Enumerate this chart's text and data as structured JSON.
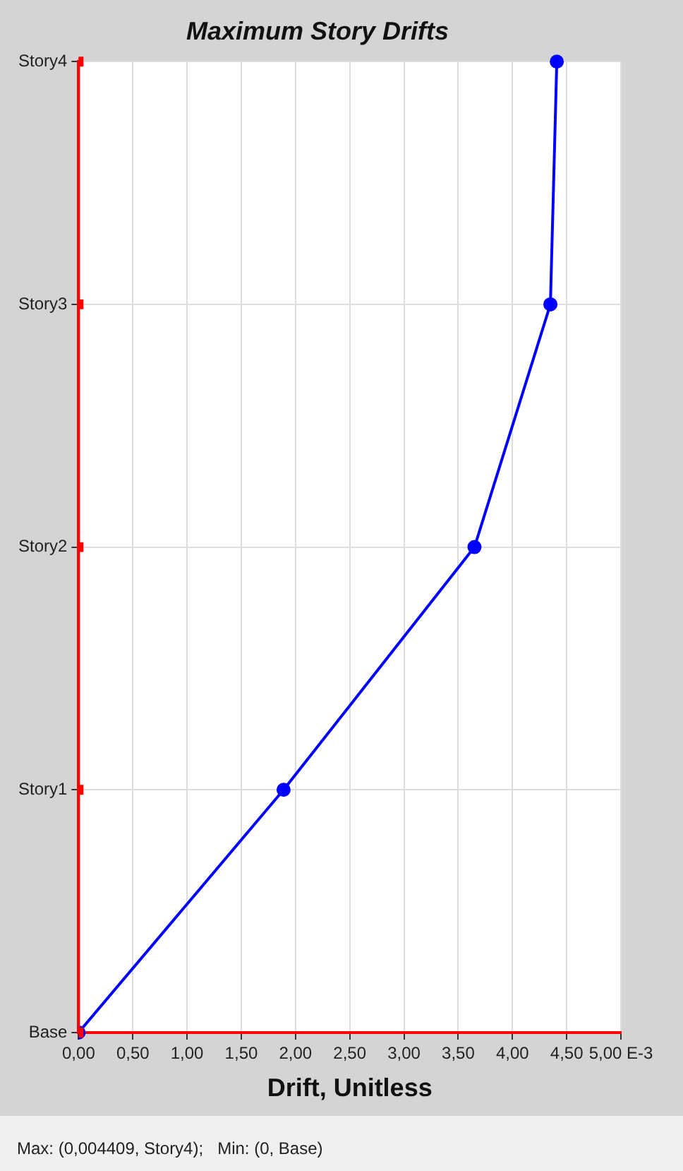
{
  "chart_data": {
    "type": "line",
    "title": "Maximum Story Drifts",
    "xlabel": "Drift, Unitless",
    "orientation": "horizontal",
    "categories": [
      "Story4",
      "Story3",
      "Story2",
      "Story1",
      "Base"
    ],
    "series": [
      {
        "color": "#ff0000",
        "values": [
          0,
          0,
          0,
          0,
          0
        ],
        "marker": "square"
      },
      {
        "color": "#0000ff",
        "values": [
          4.409,
          4.35,
          3.65,
          1.89,
          0
        ],
        "marker": "circle"
      }
    ],
    "xlim": [
      0,
      5
    ],
    "xticks": [
      {
        "value": 0,
        "label": "0,00"
      },
      {
        "value": 0.5,
        "label": "0,50"
      },
      {
        "value": 1,
        "label": "1,00"
      },
      {
        "value": 1.5,
        "label": "1,50"
      },
      {
        "value": 2,
        "label": "2,00"
      },
      {
        "value": 2.5,
        "label": "2,50"
      },
      {
        "value": 3,
        "label": "3,00"
      },
      {
        "value": 3.5,
        "label": "3,50"
      },
      {
        "value": 4,
        "label": "4,00"
      },
      {
        "value": 4.5,
        "label": "4,50"
      },
      {
        "value": 5,
        "label": "5,00 E-3"
      }
    ],
    "grid": true,
    "legend": false,
    "line_style": "solid",
    "annotations": [
      "Max: (0,004409, Story4);   Min: (0, Base)"
    ]
  }
}
